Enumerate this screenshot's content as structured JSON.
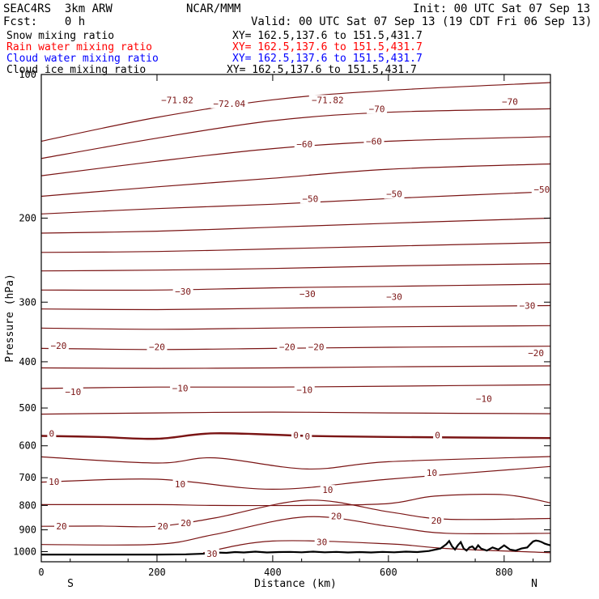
{
  "header": {
    "model": "SEAC4RS  3km ARW",
    "institution": "NCAR/MMM",
    "init": "Init: 00 UTC Sat 07 Sep 13",
    "fcst": "Fcst:    0 h",
    "valid": "Valid: 00 UTC Sat 07 Sep 13 (19 CDT Fri 06 Sep 13)"
  },
  "legend": [
    {
      "label": "Snow mixing ratio",
      "xy": "XY= 162.5,137.6 to 151.5,431.7",
      "color": "#000000"
    },
    {
      "label": "Rain water mixing ratio",
      "xy": "XY= 162.5,137.6 to 151.5,431.7",
      "color": "#ff0000"
    },
    {
      "label": "Cloud water mixing ratio",
      "xy": "XY= 162.5,137.6 to 151.5,431.7",
      "color": "#0000ff"
    },
    {
      "label": "Cloud ice mixing ratio",
      "xy": "XY= 162.5,137.6 to 151.5,431.7",
      "color": "#000000"
    }
  ],
  "colors": {
    "isotherm": "#7a1414",
    "terrain": "#000000",
    "axis": "#000000"
  },
  "chart_data": {
    "type": "line",
    "title": "",
    "xlabel": "Distance (km)",
    "ylabel": "Pressure (hPa)",
    "xlim": [
      0,
      880
    ],
    "ylim": [
      1050,
      100
    ],
    "y_scale": "log",
    "xticks": [
      0,
      200,
      400,
      600,
      800
    ],
    "xtick_labels": [
      "0",
      "200",
      "400",
      "600",
      "800"
    ],
    "yticks": [
      100,
      200,
      300,
      400,
      500,
      600,
      700,
      800,
      900,
      1000
    ],
    "ytick_labels": [
      "100",
      "200",
      "300",
      "400",
      "500",
      "600",
      "700",
      "800",
      "900",
      "1000"
    ],
    "x_end_labels": {
      "left": "S",
      "right": "N"
    },
    "grid": false,
    "isotherms": [
      {
        "x": [
          0,
          200,
          400,
          600,
          880
        ],
        "p": [
          138,
          123,
          113,
          108,
          104
        ]
      },
      {
        "x": [
          0,
          200,
          400,
          600,
          880
        ],
        "p": [
          150,
          136,
          125,
          120,
          118
        ]
      },
      {
        "x": [
          0,
          200,
          400,
          600,
          880
        ],
        "p": [
          163,
          152,
          143,
          138,
          135
        ]
      },
      {
        "x": [
          0,
          200,
          400,
          600,
          880
        ],
        "p": [
          180,
          172,
          165,
          158,
          154
        ]
      },
      {
        "x": [
          0,
          200,
          400,
          600,
          880
        ],
        "p": [
          196,
          191,
          187,
          182,
          176
        ]
      },
      {
        "x": [
          0,
          200,
          400,
          600,
          880
        ],
        "p": [
          215,
          213,
          209,
          205,
          200
        ]
      },
      {
        "x": [
          0,
          200,
          400,
          600,
          880
        ],
        "p": [
          236,
          235,
          232,
          229,
          225
        ]
      },
      {
        "x": [
          0,
          200,
          400,
          600,
          880
        ],
        "p": [
          258,
          257,
          255,
          252,
          249
        ]
      },
      {
        "x": [
          0,
          200,
          400,
          600,
          880
        ],
        "p": [
          283,
          283,
          280,
          278,
          275
        ]
      },
      {
        "x": [
          0,
          200,
          400,
          600,
          880
        ],
        "p": [
          310,
          311,
          309,
          307,
          305
        ]
      },
      {
        "x": [
          0,
          200,
          400,
          600,
          880
        ],
        "p": [
          340,
          342,
          340,
          338,
          336
        ]
      },
      {
        "x": [
          0,
          200,
          400,
          600,
          880
        ],
        "p": [
          375,
          377,
          375,
          373,
          371
        ]
      },
      {
        "x": [
          0,
          200,
          400,
          600,
          880
        ],
        "p": [
          412,
          413,
          412,
          410,
          408
        ]
      },
      {
        "x": [
          0,
          200,
          400,
          600,
          880
        ],
        "p": [
          455,
          452,
          452,
          450,
          447
        ]
      },
      {
        "x": [
          0,
          200,
          400,
          600,
          880
        ],
        "p": [
          515,
          512,
          510,
          512,
          514
        ]
      },
      {
        "x": [
          0,
          100,
          200,
          300,
          460,
          600,
          880
        ],
        "p": [
          572,
          575,
          580,
          565,
          572,
          575,
          578
        ]
      },
      {
        "x": [
          0,
          200,
          300,
          460,
          600,
          880
        ],
        "p": [
          633,
          652,
          636,
          671,
          648,
          632
        ]
      },
      {
        "x": [
          0,
          200,
          400,
          600,
          880
        ],
        "p": [
          715,
          705,
          740,
          705,
          663
        ]
      },
      {
        "x": [
          0,
          200,
          300,
          460,
          600,
          680,
          800,
          880
        ],
        "p": [
          797,
          797,
          800,
          800,
          793,
          765,
          760,
          790
        ]
      },
      {
        "x": [
          0,
          100,
          200,
          300,
          460,
          600,
          700,
          880
        ],
        "p": [
          885,
          884,
          885,
          850,
          780,
          825,
          855,
          852
        ]
      },
      {
        "x": [
          0,
          200,
          300,
          460,
          600,
          700,
          880
        ],
        "p": [
          966,
          965,
          920,
          845,
          885,
          915,
          915
        ]
      },
      {
        "x": [
          280,
          400,
          600,
          700,
          880
        ],
        "p": [
          1005,
          950,
          963,
          985,
          1005
        ]
      }
    ],
    "isotherm_labels": [
      {
        "x": 235,
        "p": 113,
        "text": "-71.82"
      },
      {
        "x": 325,
        "p": 115,
        "text": "-72.04"
      },
      {
        "x": 495,
        "p": 113,
        "text": "-71.82"
      },
      {
        "x": 580,
        "p": 118,
        "text": "-70"
      },
      {
        "x": 810,
        "p": 114,
        "text": "-70"
      },
      {
        "x": 455,
        "p": 140,
        "text": "-60"
      },
      {
        "x": 575,
        "p": 138,
        "text": "-60"
      },
      {
        "x": 465,
        "p": 182,
        "text": "-50"
      },
      {
        "x": 610,
        "p": 178,
        "text": "-50"
      },
      {
        "x": 865,
        "p": 174,
        "text": "-50"
      },
      {
        "x": 245,
        "p": 285,
        "text": "-30"
      },
      {
        "x": 460,
        "p": 288,
        "text": "-30"
      },
      {
        "x": 610,
        "p": 292,
        "text": "-30"
      },
      {
        "x": 840,
        "p": 305,
        "text": "-30"
      },
      {
        "x": 30,
        "p": 370,
        "text": "-20"
      },
      {
        "x": 200,
        "p": 372,
        "text": "-20"
      },
      {
        "x": 425,
        "p": 372,
        "text": "-20"
      },
      {
        "x": 475,
        "p": 372,
        "text": "-20"
      },
      {
        "x": 855,
        "p": 383,
        "text": "-20"
      },
      {
        "x": 55,
        "p": 462,
        "text": "-10"
      },
      {
        "x": 240,
        "p": 454,
        "text": "-10"
      },
      {
        "x": 455,
        "p": 458,
        "text": "-10"
      },
      {
        "x": 765,
        "p": 478,
        "text": "-10"
      },
      {
        "x": 18,
        "p": 565,
        "text": "0"
      },
      {
        "x": 440,
        "p": 570,
        "text": "0"
      },
      {
        "x": 460,
        "p": 573,
        "text": "0"
      },
      {
        "x": 685,
        "p": 570,
        "text": "0"
      },
      {
        "x": 22,
        "p": 713,
        "text": "10"
      },
      {
        "x": 240,
        "p": 722,
        "text": "10"
      },
      {
        "x": 495,
        "p": 742,
        "text": "10"
      },
      {
        "x": 675,
        "p": 683,
        "text": "10"
      },
      {
        "x": 510,
        "p": 842,
        "text": "20"
      },
      {
        "x": 35,
        "p": 885,
        "text": "20"
      },
      {
        "x": 210,
        "p": 885,
        "text": "20"
      },
      {
        "x": 250,
        "p": 870,
        "text": "20"
      },
      {
        "x": 683,
        "p": 860,
        "text": "20"
      },
      {
        "x": 485,
        "p": 955,
        "text": "30"
      },
      {
        "x": 295,
        "p": 1010,
        "text": "30"
      }
    ],
    "terrain": {
      "x": [
        0,
        50,
        100,
        150,
        200,
        250,
        270,
        290,
        300,
        320,
        335,
        350,
        370,
        390,
        410,
        430,
        450,
        470,
        490,
        510,
        530,
        550,
        570,
        590,
        610,
        630,
        650,
        670,
        690,
        700,
        705,
        710,
        715,
        720,
        725,
        730,
        735,
        740,
        745,
        750,
        755,
        760,
        770,
        780,
        790,
        800,
        810,
        820,
        830,
        840,
        845,
        850,
        855,
        860,
        865,
        870,
        875,
        880
      ],
      "p": [
        1014,
        1014,
        1014,
        1014,
        1014,
        1013,
        1011,
        1009,
        1004,
        1006,
        1002,
        1004,
        1000,
        1004,
        1002,
        1001,
        1003,
        1000,
        1003,
        1001,
        1004,
        1002,
        1004,
        1001,
        1003,
        1000,
        1002,
        997,
        985,
        965,
        950,
        975,
        990,
        970,
        955,
        985,
        995,
        980,
        975,
        990,
        970,
        985,
        995,
        980,
        990,
        970,
        990,
        995,
        985,
        980,
        965,
        952,
        948,
        950,
        955,
        962,
        966,
        970
      ]
    }
  }
}
